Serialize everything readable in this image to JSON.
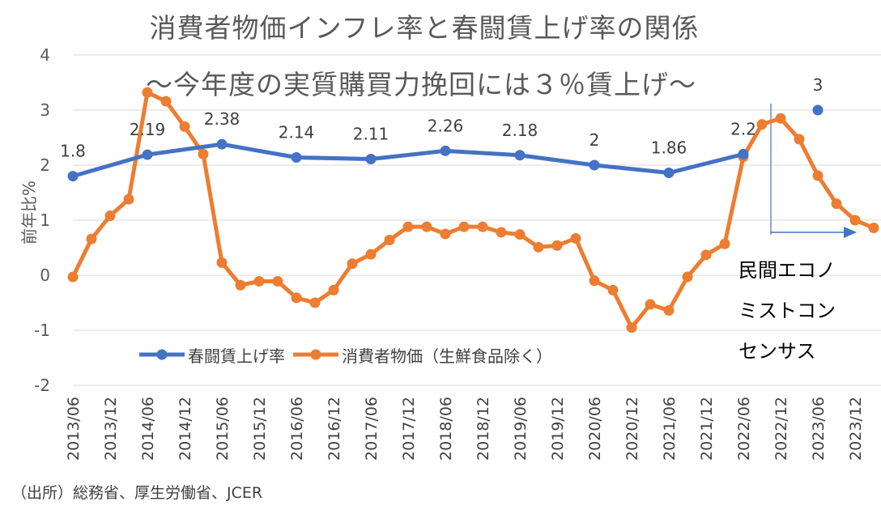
{
  "chart_data": {
    "type": "line",
    "title": "消費者物価インフレ率と春闘賃上げ率の関係",
    "subtitle": "〜今年度の実質購買力挽回には３％賃上げ〜",
    "ylabel": "前年比%",
    "xlabel": "",
    "ylim": [
      -2,
      4
    ],
    "yticks": [
      "4",
      "3",
      "2",
      "1",
      "0",
      "-1",
      "-2"
    ],
    "x_tick_labels": [
      "2013/06",
      "2013/12",
      "2014/06",
      "2014/12",
      "2015/06",
      "2015/12",
      "2016/06",
      "2016/12",
      "2017/06",
      "2017/12",
      "2018/06",
      "2018/12",
      "2019/06",
      "2019/12",
      "2020/06",
      "2020/12",
      "2021/06",
      "2021/12",
      "2022/06",
      "2022/12",
      "2023/06",
      "2023/12"
    ],
    "x_quarters": [
      "2013/06",
      "2013/09",
      "2013/12",
      "2014/03",
      "2014/06",
      "2014/09",
      "2014/12",
      "2015/03",
      "2015/06",
      "2015/09",
      "2015/12",
      "2016/03",
      "2016/06",
      "2016/09",
      "2016/12",
      "2017/03",
      "2017/06",
      "2017/09",
      "2017/12",
      "2018/03",
      "2018/06",
      "2018/09",
      "2018/12",
      "2019/03",
      "2019/06",
      "2019/09",
      "2019/12",
      "2020/03",
      "2020/06",
      "2020/09",
      "2020/12",
      "2021/03",
      "2021/06",
      "2021/09",
      "2021/12",
      "2022/03",
      "2022/06",
      "2022/09",
      "2022/12",
      "2023/03",
      "2023/06",
      "2023/09",
      "2023/12",
      "2024/03"
    ],
    "grid": true,
    "legend_position": "bottom-left",
    "series": [
      {
        "name": "春闘賃上げ率",
        "color": "#4472C4",
        "x": [
          "2013/06",
          "2014/06",
          "2015/06",
          "2016/06",
          "2017/06",
          "2018/06",
          "2019/06",
          "2020/06",
          "2021/06",
          "2022/06"
        ],
        "values": [
          1.8,
          2.19,
          2.38,
          2.14,
          2.11,
          2.26,
          2.18,
          2.0,
          1.86,
          2.2
        ],
        "labels": [
          "1.8",
          "2.19",
          "2.38",
          "2.14",
          "2.11",
          "2.26",
          "2.18",
          "2",
          "1.86",
          "2.2"
        ]
      },
      {
        "name": "消費者物価（生鮮食品除く）",
        "color": "#ED7D31",
        "x": [
          "2013/06",
          "2013/09",
          "2013/12",
          "2014/03",
          "2014/06",
          "2014/09",
          "2014/12",
          "2015/03",
          "2015/06",
          "2015/09",
          "2015/12",
          "2016/03",
          "2016/06",
          "2016/09",
          "2016/12",
          "2017/03",
          "2017/06",
          "2017/09",
          "2017/12",
          "2018/03",
          "2018/06",
          "2018/09",
          "2018/12",
          "2019/03",
          "2019/06",
          "2019/09",
          "2019/12",
          "2020/03",
          "2020/06",
          "2020/09",
          "2020/12",
          "2021/03",
          "2021/06",
          "2021/09",
          "2021/12",
          "2022/03",
          "2022/06",
          "2022/09",
          "2022/12",
          "2023/03",
          "2023/06",
          "2023/09",
          "2023/12",
          "2024/03"
        ],
        "values": [
          -0.03,
          0.66,
          1.08,
          1.38,
          3.32,
          3.16,
          2.7,
          2.2,
          0.23,
          -0.18,
          -0.11,
          -0.11,
          -0.41,
          -0.5,
          -0.27,
          0.21,
          0.38,
          0.64,
          0.88,
          0.88,
          0.75,
          0.88,
          0.88,
          0.78,
          0.74,
          0.51,
          0.54,
          0.67,
          -0.1,
          -0.27,
          -0.95,
          -0.53,
          -0.64,
          -0.03,
          0.37,
          0.57,
          2.15,
          2.74,
          2.85,
          2.47,
          1.81,
          1.3,
          1.0,
          0.86
        ]
      },
      {
        "name": "民間エコノミストコンセンサス",
        "color": "#4472C4",
        "x": [
          "2023/06"
        ],
        "values": [
          3.0
        ],
        "labels": [
          "3"
        ]
      }
    ],
    "annotations": [
      {
        "text": "民間エコノ"
      },
      {
        "text": "ミストコン"
      },
      {
        "text": "センサス"
      }
    ],
    "source": "（出所）総務省、厚生労働省、JCER"
  }
}
